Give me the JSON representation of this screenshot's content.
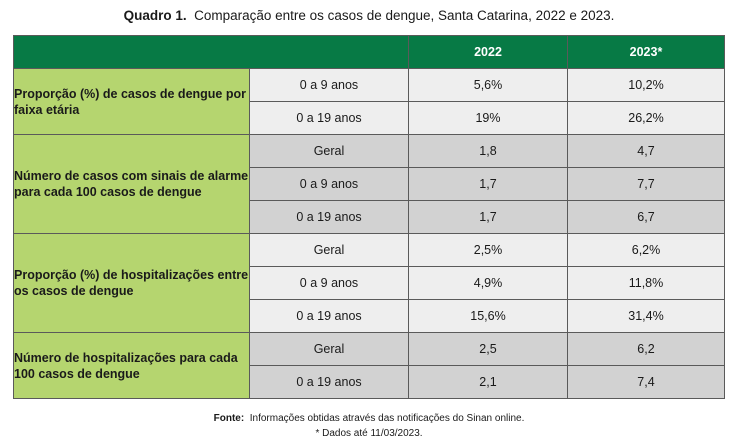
{
  "caption": {
    "label": "Quadro 1.",
    "text": "Comparação entre os casos de dengue, Santa Catarina, 2022 e 2023."
  },
  "header": {
    "col_2022": "2022",
    "col_2023": "2023*"
  },
  "groups": [
    {
      "category": "Proporção (%) de casos de dengue por faixa etária",
      "rows": [
        {
          "sub": "0 a 9 anos",
          "v2022": "5,6%",
          "v2023": "10,2%"
        },
        {
          "sub": "0 a 19 anos",
          "v2022": "19%",
          "v2023": "26,2%"
        }
      ]
    },
    {
      "category": "Número de casos com sinais de alarme para cada 100 casos de dengue",
      "rows": [
        {
          "sub": "Geral",
          "v2022": "1,8",
          "v2023": "4,7"
        },
        {
          "sub": "0 a 9 anos",
          "v2022": "1,7",
          "v2023": "7,7"
        },
        {
          "sub": "0 a 19 anos",
          "v2022": "1,7",
          "v2023": "6,7"
        }
      ]
    },
    {
      "category": "Proporção (%) de hospitalizações entre os casos de dengue",
      "rows": [
        {
          "sub": "Geral",
          "v2022": "2,5%",
          "v2023": "6,2%"
        },
        {
          "sub": "0 a 9 anos",
          "v2022": "4,9%",
          "v2023": "11,8%"
        },
        {
          "sub": "0 a 19 anos",
          "v2022": "15,6%",
          "v2023": "31,4%"
        }
      ]
    },
    {
      "category": "Número de hospitalizações para cada 100 casos de dengue",
      "rows": [
        {
          "sub": "Geral",
          "v2022": "2,5",
          "v2023": "6,2"
        },
        {
          "sub": "0 a 19 anos",
          "v2022": "2,1",
          "v2023": "7,4"
        }
      ]
    }
  ],
  "footer": {
    "source_label": "Fonte:",
    "source_text": "Informações obtidas através das notificações do Sinan online.",
    "note": "* Dados até 11/03/2023."
  },
  "colors": {
    "header_green": "#077a45",
    "category_green": "#b5d56f",
    "row_light": "#eeeeee",
    "row_gray": "#d2d2d2"
  }
}
